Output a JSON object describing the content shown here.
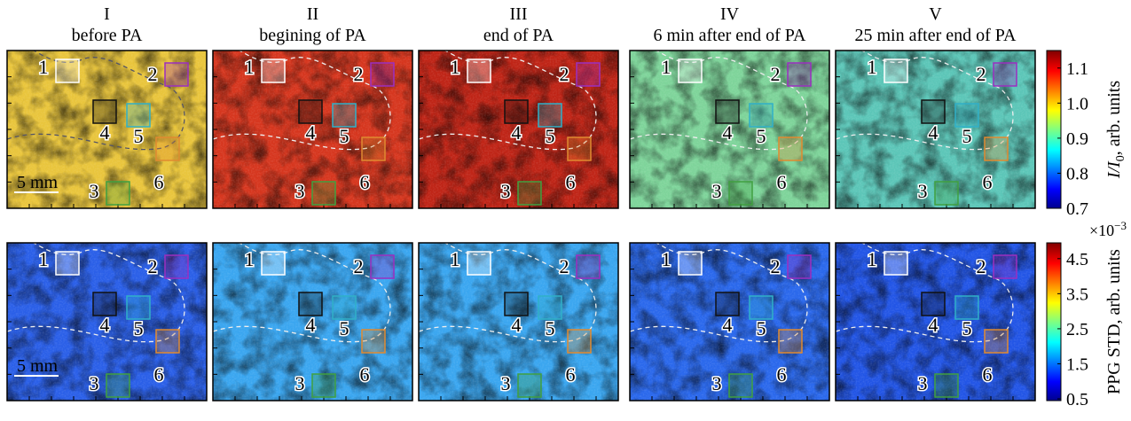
{
  "columns": [
    {
      "roman": "I",
      "title": "before PA"
    },
    {
      "roman": "II",
      "title": "begining of PA"
    },
    {
      "roman": "III",
      "title": "end of PA"
    },
    {
      "roman": "IV",
      "title": "6 min after end of PA"
    },
    {
      "roman": "V",
      "title": "25 min after end of PA"
    }
  ],
  "region_labels": [
    "1",
    "2",
    "3",
    "4",
    "5",
    "6"
  ],
  "scale_bar": "5 mm",
  "colorbar_top": {
    "label_main": "I/I",
    "label_sub": "0",
    "label_unit": ", arb. units",
    "lim": [
      0.7,
      1.15
    ],
    "ticks": [
      0.7,
      0.8,
      0.9,
      {
        "value": 1,
        "label": "1.0"
      },
      1.1
    ]
  },
  "colorbar_bottom": {
    "multiplier_base": "×10",
    "multiplier_exp": "−3",
    "label": "PPG STD, arb. units",
    "lim": [
      0.45,
      4.95
    ],
    "ticks": [
      0.5,
      1.5,
      2.5,
      3.5,
      4.5
    ]
  }
}
